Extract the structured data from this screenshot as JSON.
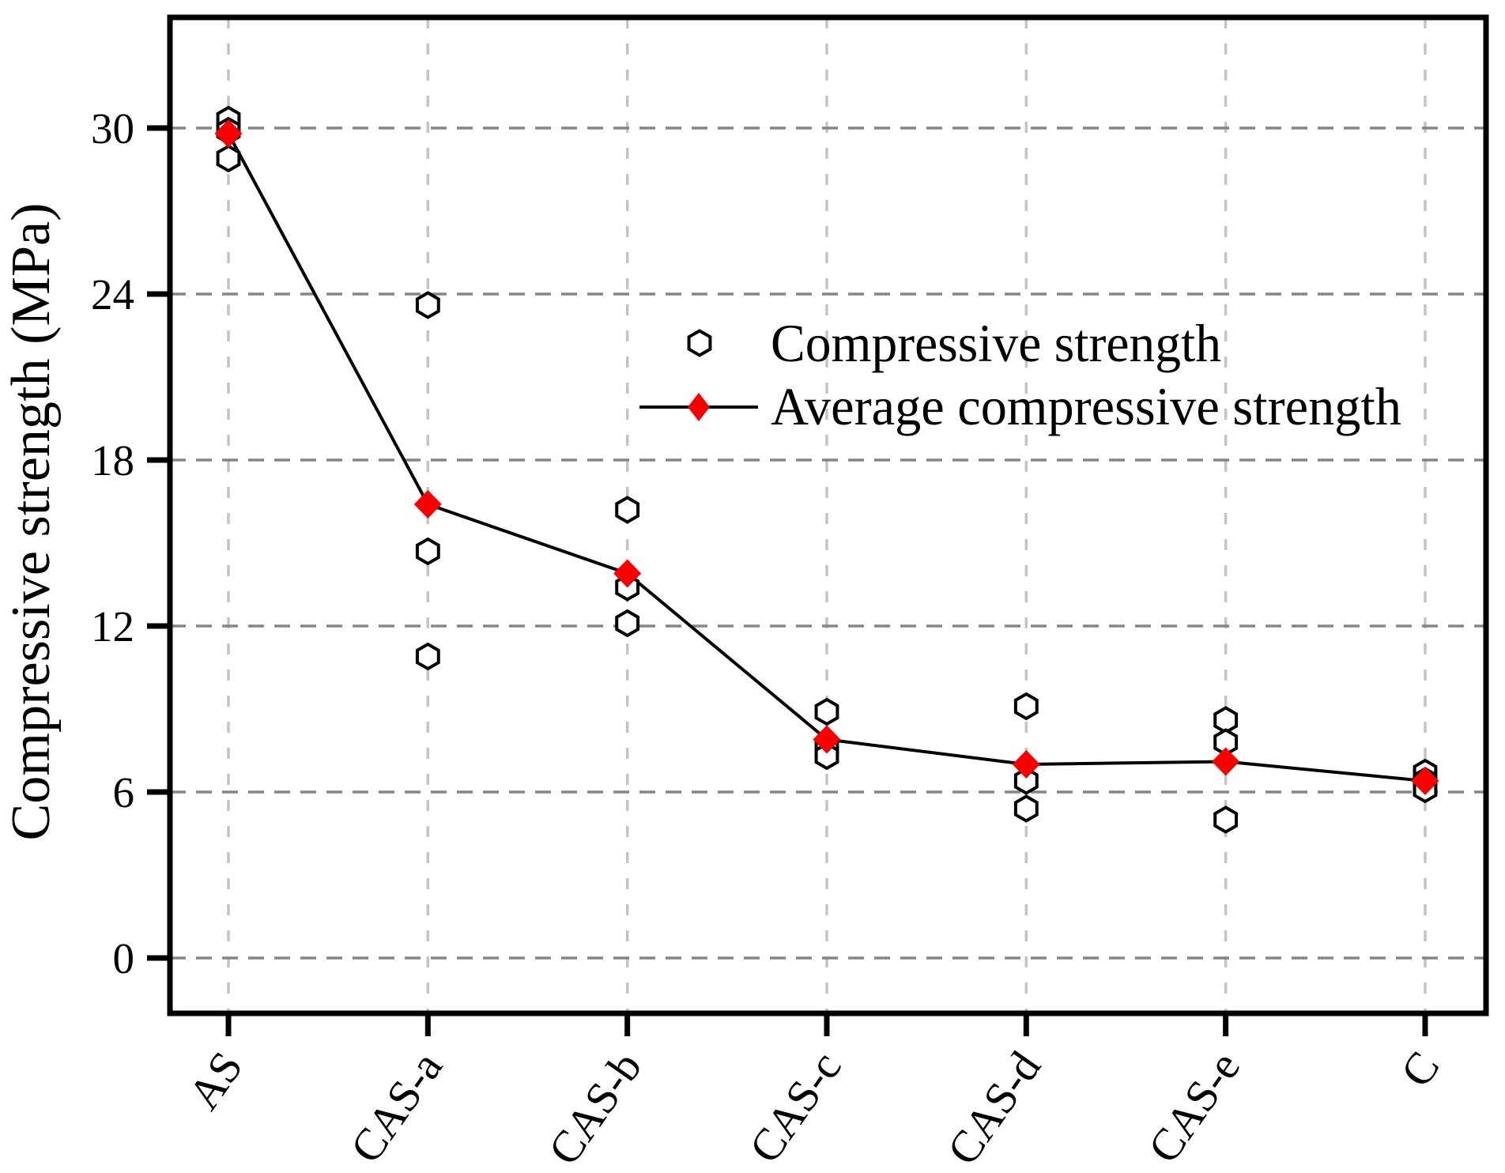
{
  "colors": {
    "background": "#ffffff",
    "axis": "#000000",
    "series_line": "#000000",
    "avg_marker_red": "#f80000",
    "hexagon_fill": "#ffffff",
    "hexagon_stroke": "#000000",
    "grid_horizontal": "#858585",
    "grid_vertical": "#c4c4c4"
  },
  "legend": {
    "entries": [
      {
        "marker": "open-hexagon-icon",
        "label": "Compressive strength"
      },
      {
        "marker": "line-with-red-diamond-icon",
        "label": "Average compressive strength"
      }
    ]
  },
  "chart_data": {
    "type": "scatter",
    "title": "",
    "xlabel": "",
    "ylabel": "Compressive strength (MPa)",
    "categories": [
      "AS",
      "CAS-a",
      "CAS-b",
      "CAS-c",
      "CAS-d",
      "CAS-e",
      "C"
    ],
    "yticks": [
      0,
      6,
      12,
      18,
      24,
      30
    ],
    "ylim": [
      -2,
      34
    ],
    "grid": "dashed-both-directions",
    "legend_position": "inside-upper-middle",
    "series": [
      {
        "name": "Compressive strength",
        "type": "scatter",
        "marker": "open-hexagon",
        "values_by_category": [
          [
            30.3,
            29.9,
            28.9
          ],
          [
            23.6,
            14.7,
            10.9
          ],
          [
            16.2,
            13.4,
            12.1
          ],
          [
            8.9,
            7.6,
            7.3
          ],
          [
            9.1,
            6.4,
            5.4
          ],
          [
            8.6,
            7.8,
            5.0
          ],
          [
            6.7,
            6.4,
            6.1
          ]
        ]
      },
      {
        "name": "Average compressive strength",
        "type": "line-with-marker",
        "marker": "filled-diamond",
        "color": "#f80000",
        "values": [
          29.8,
          16.4,
          13.9,
          7.9,
          7.0,
          7.1,
          6.4
        ]
      }
    ]
  }
}
